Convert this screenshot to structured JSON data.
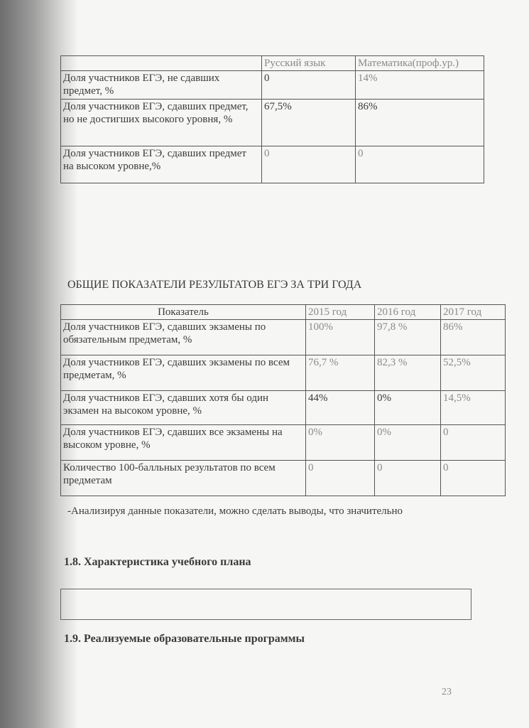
{
  "table1": {
    "headers": [
      "",
      "Русский язык",
      "Математика(проф.ур.)"
    ],
    "rows": [
      [
        "Доля участников ЕГЭ, не сдавших предмет, %",
        "0",
        "14%"
      ],
      [
        "Доля участников ЕГЭ, сдавших предмет, но не достигших высокого уровня, %",
        "67,5%",
        "86%"
      ],
      [
        "Доля участников ЕГЭ, сдавших предмет на высоком уровне,%",
        "0",
        "0"
      ]
    ]
  },
  "title2": "ОБЩИЕ ПОКАЗАТЕЛИ РЕЗУЛЬТАТОВ ЕГЭ ЗА ТРИ ГОДА",
  "table2": {
    "headers": [
      "Показатель",
      "2015 год",
      "2016 год",
      "2017 год"
    ],
    "rows": [
      [
        "Доля участников ЕГЭ, сдавших экзамены по обязательным предметам, %",
        "100%",
        "97,8 %",
        "86%"
      ],
      [
        "Доля участников ЕГЭ, сдавших экзамены по всем предметам, %",
        "76,7 %",
        "82,3 %",
        "52,5%"
      ],
      [
        "Доля участников ЕГЭ, сдавших хотя бы один экзамен на высоком уровне, %",
        "44%",
        "0%",
        "14,5%"
      ],
      [
        "Доля участников ЕГЭ, сдавших все экзамены на высоком уровне, %",
        "0%",
        "0%",
        "0"
      ],
      [
        "Количество 100-балльных результатов по всем предметам",
        "0",
        "0",
        "0"
      ]
    ]
  },
  "conclusion": "-Анализируя данные показатели, можно сделать выводы, что значительно",
  "section_1_8": "1.8. Характеристика учебного плана",
  "section_1_9": "1.9. Реализуемые образовательные программы",
  "page_number": "23"
}
